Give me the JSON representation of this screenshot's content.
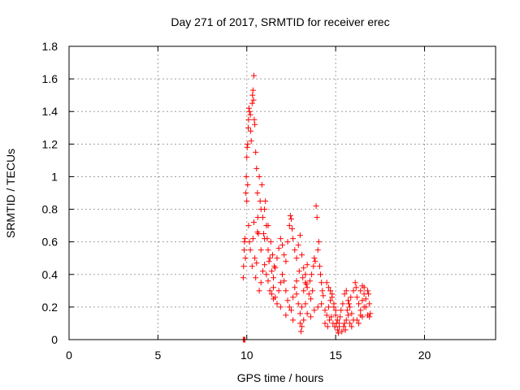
{
  "chart_data": {
    "type": "scatter",
    "title": "Day 271 of 2017, SRMTID for receiver erec",
    "xlabel": "GPS time / hours",
    "ylabel": "SRMTID / TECUs",
    "xlim": [
      0,
      24
    ],
    "ylim": [
      0,
      1.8
    ],
    "xticks": [
      0,
      5,
      10,
      15,
      20
    ],
    "xtick_labels": [
      "0",
      "5",
      "10",
      "15",
      "20"
    ],
    "yticks": [
      0,
      0.2,
      0.4,
      0.6,
      0.8,
      1,
      1.2,
      1.4,
      1.6,
      1.8
    ],
    "ytick_labels": [
      "0",
      "0.2",
      "0.4",
      "0.6",
      "0.8",
      "1",
      "1.2",
      "1.4",
      "1.6",
      "1.8"
    ],
    "grid": true,
    "marker": "+",
    "color": "#ff0000",
    "series": [
      {
        "name": "SRMTID",
        "points": [
          [
            9.8,
            0.0
          ],
          [
            9.85,
            0.0
          ],
          [
            9.9,
            0.0
          ],
          [
            9.8,
            0.38
          ],
          [
            9.82,
            0.45
          ],
          [
            9.85,
            0.55
          ],
          [
            9.87,
            0.6
          ],
          [
            9.9,
            0.62
          ],
          [
            9.92,
            0.5
          ],
          [
            9.95,
            0.9
          ],
          [
            9.97,
            1.0
          ],
          [
            10.0,
            1.12
          ],
          [
            10.02,
            1.18
          ],
          [
            10.05,
            1.2
          ],
          [
            10.08,
            1.3
          ],
          [
            10.1,
            1.35
          ],
          [
            10.12,
            1.42
          ],
          [
            10.15,
            1.4
          ],
          [
            10.2,
            1.38
          ],
          [
            10.22,
            1.28
          ],
          [
            10.25,
            1.22
          ],
          [
            10.3,
            1.45
          ],
          [
            10.32,
            1.5
          ],
          [
            10.35,
            1.53
          ],
          [
            10.38,
            1.47
          ],
          [
            10.4,
            1.62
          ],
          [
            10.42,
            1.35
          ],
          [
            10.45,
            1.32
          ],
          [
            10.5,
            1.15
          ],
          [
            10.55,
            1.05
          ],
          [
            10.6,
            0.9
          ],
          [
            10.62,
            0.75
          ],
          [
            10.65,
            0.65
          ],
          [
            10.0,
            0.85
          ],
          [
            10.05,
            0.95
          ],
          [
            10.1,
            0.7
          ],
          [
            10.15,
            0.6
          ],
          [
            10.2,
            0.55
          ],
          [
            10.3,
            0.45
          ],
          [
            10.35,
            0.62
          ],
          [
            10.4,
            0.72
          ],
          [
            10.45,
            0.5
          ],
          [
            10.5,
            0.38
          ],
          [
            10.55,
            0.47
          ],
          [
            10.6,
            0.66
          ],
          [
            10.7,
            1.0
          ],
          [
            10.75,
            0.85
          ],
          [
            10.8,
            0.8
          ],
          [
            10.85,
            0.95
          ],
          [
            10.9,
            0.75
          ],
          [
            10.95,
            0.65
          ],
          [
            11.0,
            0.8
          ],
          [
            11.05,
            0.85
          ],
          [
            11.1,
            0.7
          ],
          [
            11.15,
            0.62
          ],
          [
            11.2,
            0.55
          ],
          [
            11.25,
            0.48
          ],
          [
            10.7,
            0.3
          ],
          [
            10.8,
            0.35
          ],
          [
            10.9,
            0.42
          ],
          [
            11.0,
            0.46
          ],
          [
            11.1,
            0.4
          ],
          [
            11.2,
            0.36
          ],
          [
            11.3,
            0.5
          ],
          [
            11.4,
            0.42
          ],
          [
            11.5,
            0.38
          ],
          [
            11.6,
            0.44
          ],
          [
            11.7,
            0.5
          ],
          [
            11.8,
            0.56
          ],
          [
            11.9,
            0.62
          ],
          [
            12.0,
            0.58
          ],
          [
            12.1,
            0.52
          ],
          [
            12.2,
            0.48
          ],
          [
            12.3,
            0.6
          ],
          [
            12.4,
            0.7
          ],
          [
            12.45,
            0.76
          ],
          [
            12.5,
            0.74
          ],
          [
            12.55,
            0.68
          ],
          [
            12.6,
            0.62
          ],
          [
            12.7,
            0.55
          ],
          [
            12.8,
            0.5
          ],
          [
            12.9,
            0.58
          ],
          [
            13.0,
            0.64
          ],
          [
            13.1,
            0.52
          ],
          [
            13.2,
            0.44
          ],
          [
            13.3,
            0.4
          ],
          [
            13.4,
            0.46
          ],
          [
            11.4,
            0.28
          ],
          [
            11.5,
            0.32
          ],
          [
            11.6,
            0.26
          ],
          [
            11.7,
            0.22
          ],
          [
            11.8,
            0.3
          ],
          [
            11.9,
            0.35
          ],
          [
            12.0,
            0.4
          ],
          [
            12.1,
            0.36
          ],
          [
            12.2,
            0.3
          ],
          [
            12.3,
            0.24
          ],
          [
            12.4,
            0.2
          ],
          [
            12.5,
            0.18
          ],
          [
            12.6,
            0.26
          ],
          [
            12.7,
            0.32
          ],
          [
            12.8,
            0.28
          ],
          [
            12.9,
            0.22
          ],
          [
            13.0,
            0.16
          ],
          [
            13.1,
            0.2
          ],
          [
            13.2,
            0.3
          ],
          [
            13.3,
            0.35
          ],
          [
            13.4,
            0.32
          ],
          [
            13.5,
            0.28
          ],
          [
            13.6,
            0.25
          ],
          [
            13.7,
            0.3
          ],
          [
            13.75,
            0.45
          ],
          [
            13.8,
            0.5
          ],
          [
            13.85,
            0.48
          ],
          [
            13.9,
            0.82
          ],
          [
            13.95,
            0.75
          ],
          [
            14.0,
            0.55
          ],
          [
            14.05,
            0.6
          ],
          [
            14.1,
            0.45
          ],
          [
            14.15,
            0.4
          ],
          [
            14.2,
            0.35
          ],
          [
            14.25,
            0.3
          ],
          [
            14.3,
            0.27
          ],
          [
            13.0,
            0.1
          ],
          [
            13.05,
            0.05
          ],
          [
            13.1,
            0.08
          ],
          [
            13.2,
            0.12
          ],
          [
            13.4,
            0.16
          ],
          [
            13.6,
            0.14
          ],
          [
            13.8,
            0.18
          ],
          [
            14.0,
            0.2
          ],
          [
            14.2,
            0.22
          ],
          [
            14.4,
            0.18
          ],
          [
            14.5,
            0.15
          ],
          [
            14.6,
            0.2
          ],
          [
            14.7,
            0.24
          ],
          [
            14.8,
            0.28
          ],
          [
            14.9,
            0.22
          ],
          [
            15.0,
            0.18
          ],
          [
            15.1,
            0.12
          ],
          [
            15.2,
            0.08
          ],
          [
            14.5,
            0.35
          ],
          [
            14.6,
            0.32
          ],
          [
            14.7,
            0.3
          ],
          [
            14.8,
            0.26
          ],
          [
            14.9,
            0.2
          ],
          [
            15.0,
            0.15
          ],
          [
            15.05,
            0.1
          ],
          [
            15.1,
            0.06
          ],
          [
            15.15,
            0.04
          ],
          [
            15.2,
            0.1
          ],
          [
            15.25,
            0.14
          ],
          [
            15.3,
            0.18
          ],
          [
            15.4,
            0.22
          ],
          [
            15.5,
            0.28
          ],
          [
            15.6,
            0.3
          ],
          [
            15.7,
            0.24
          ],
          [
            15.8,
            0.2
          ],
          [
            15.9,
            0.16
          ],
          [
            15.5,
            0.1
          ],
          [
            15.6,
            0.12
          ],
          [
            15.7,
            0.15
          ],
          [
            15.8,
            0.1
          ],
          [
            15.9,
            0.08
          ],
          [
            16.0,
            0.12
          ],
          [
            16.0,
            0.3
          ],
          [
            16.1,
            0.35
          ],
          [
            16.15,
            0.32
          ],
          [
            16.2,
            0.26
          ],
          [
            16.3,
            0.22
          ],
          [
            16.4,
            0.18
          ],
          [
            16.5,
            0.14
          ],
          [
            16.6,
            0.2
          ],
          [
            16.7,
            0.25
          ],
          [
            16.8,
            0.3
          ],
          [
            16.85,
            0.28
          ],
          [
            16.9,
            0.22
          ],
          [
            16.2,
            0.12
          ],
          [
            16.3,
            0.1
          ],
          [
            16.4,
            0.15
          ],
          [
            16.5,
            0.24
          ],
          [
            16.6,
            0.28
          ],
          [
            16.7,
            0.2
          ],
          [
            16.8,
            0.15
          ],
          [
            16.9,
            0.14
          ],
          [
            16.95,
            0.16
          ],
          [
            16.4,
            0.3
          ],
          [
            16.5,
            0.33
          ],
          [
            16.6,
            0.32
          ],
          [
            11.3,
            0.3
          ],
          [
            11.5,
            0.25
          ],
          [
            11.9,
            0.2
          ],
          [
            12.2,
            0.15
          ],
          [
            12.6,
            0.12
          ],
          [
            13.3,
            0.22
          ],
          [
            10.8,
            0.55
          ],
          [
            11.0,
            0.62
          ],
          [
            11.2,
            0.7
          ],
          [
            11.35,
            0.6
          ],
          [
            11.45,
            0.52
          ],
          [
            11.55,
            0.45
          ],
          [
            12.8,
            0.36
          ],
          [
            12.95,
            0.42
          ],
          [
            13.15,
            0.38
          ],
          [
            13.35,
            0.34
          ],
          [
            13.55,
            0.36
          ],
          [
            13.65,
            0.4
          ],
          [
            14.4,
            0.1
          ],
          [
            14.55,
            0.08
          ],
          [
            14.65,
            0.12
          ],
          [
            14.75,
            0.14
          ],
          [
            14.85,
            0.1
          ],
          [
            14.95,
            0.08
          ],
          [
            15.35,
            0.05
          ],
          [
            15.45,
            0.08
          ],
          [
            15.55,
            0.06
          ],
          [
            15.65,
            0.18
          ],
          [
            15.75,
            0.22
          ],
          [
            15.85,
            0.26
          ]
        ]
      }
    ]
  }
}
